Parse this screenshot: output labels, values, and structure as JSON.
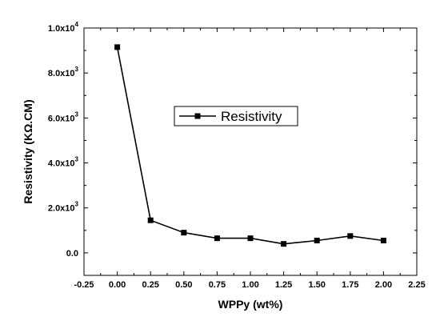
{
  "chart_data": {
    "type": "line",
    "title": "",
    "xlabel": "WPPy (wt%)",
    "ylabel": "Resistivity (KΩ.CM)",
    "xlim": [
      -0.25,
      2.25
    ],
    "ylim": [
      -1000,
      10000
    ],
    "grid": false,
    "legend_position": "center",
    "x_ticks": [
      "-0.25",
      "0.00",
      "0.25",
      "0.50",
      "0.75",
      "1.00",
      "1.25",
      "1.50",
      "1.75",
      "2.00",
      "2.25"
    ],
    "x_tick_values": [
      -0.25,
      0.0,
      0.25,
      0.5,
      0.75,
      1.0,
      1.25,
      1.5,
      1.75,
      2.0,
      2.25
    ],
    "y_ticks": [
      {
        "value": 0,
        "mantissa": "0.0",
        "exp": ""
      },
      {
        "value": 2000,
        "mantissa": "2.0x10",
        "exp": "3"
      },
      {
        "value": 4000,
        "mantissa": "4.0x10",
        "exp": "3"
      },
      {
        "value": 6000,
        "mantissa": "6.0x10",
        "exp": "3"
      },
      {
        "value": 8000,
        "mantissa": "8.0x10",
        "exp": "3"
      },
      {
        "value": 10000,
        "mantissa": "1.0x10",
        "exp": "4"
      }
    ],
    "series": [
      {
        "name": "Resistivity",
        "color": "#000000",
        "marker": "square",
        "x": [
          0.0,
          0.25,
          0.5,
          0.75,
          1.0,
          1.25,
          1.5,
          1.75,
          2.0
        ],
        "y": [
          9150,
          1450,
          900,
          650,
          650,
          400,
          550,
          750,
          550
        ]
      }
    ]
  }
}
